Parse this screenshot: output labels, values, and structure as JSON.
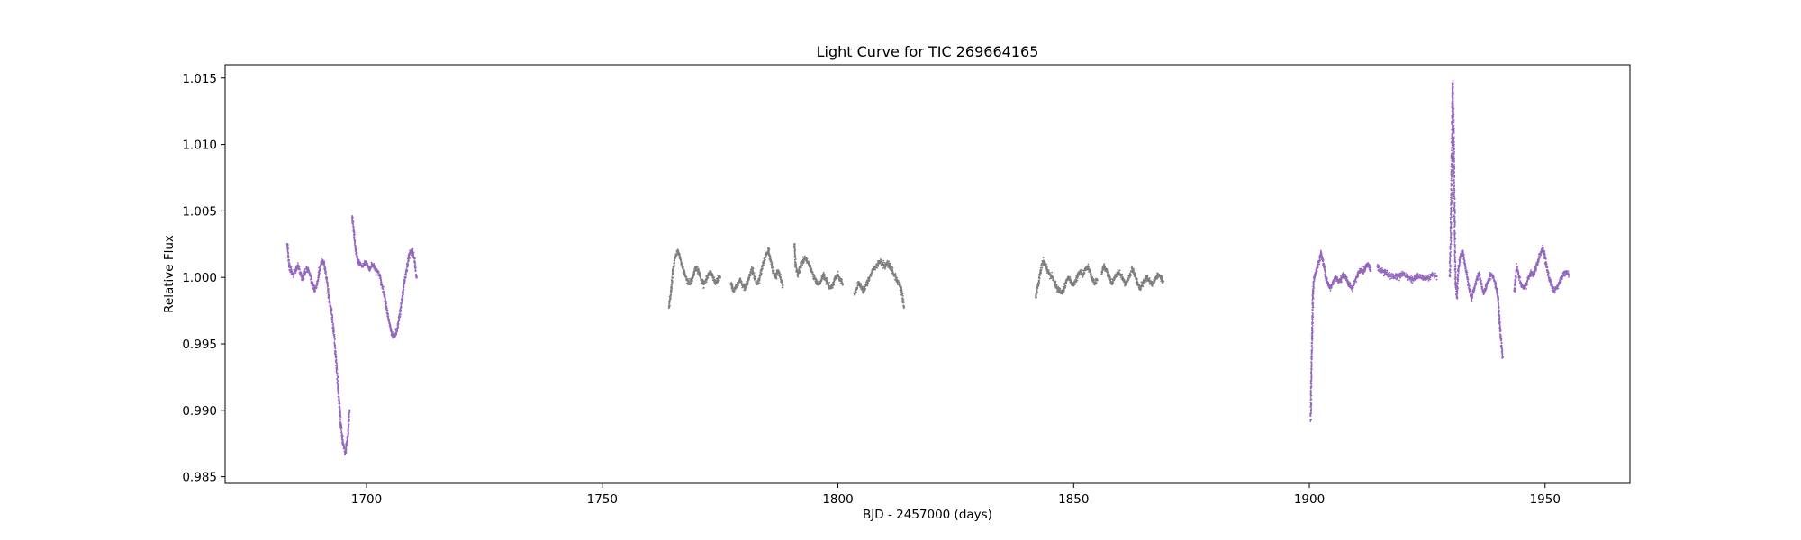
{
  "chart_data": {
    "type": "scatter",
    "title": "Light Curve for TIC 269664165",
    "xlabel": "BJD - 2457000 (days)",
    "ylabel": "Relative Flux",
    "xlim": [
      1670,
      1968
    ],
    "ylim": [
      0.9845,
      1.016
    ],
    "x_ticks": [
      1700,
      1750,
      1800,
      1850,
      1900,
      1950
    ],
    "x_tick_labels": [
      "1700",
      "1750",
      "1800",
      "1850",
      "1900",
      "1950"
    ],
    "y_ticks": [
      0.985,
      0.99,
      0.995,
      1.0,
      1.005,
      1.01,
      1.015
    ],
    "y_tick_labels": [
      "0.985",
      "0.990",
      "0.995",
      "1.000",
      "1.005",
      "1.010",
      "1.015"
    ],
    "grid": false,
    "legend": "none",
    "series": [
      {
        "color": "#9467bd",
        "segments": [
          {
            "x": [
              1683.2,
              1683.6,
              1684.0,
              1684.5,
              1685.0,
              1685.5,
              1686.0,
              1686.5,
              1687.0,
              1687.5,
              1688.0,
              1688.5,
              1689.0,
              1689.5,
              1690.0,
              1690.5,
              1691.0,
              1691.5,
              1692.0,
              1692.5,
              1693.0,
              1693.5,
              1694.0,
              1694.5,
              1695.0,
              1695.5,
              1696.0,
              1696.4
            ],
            "y": [
              1.0025,
              1.0008,
              1.0005,
              1.0002,
              1.0006,
              1.0009,
              1.0003,
              0.9998,
              1.0004,
              1.0007,
              1.0002,
              0.9995,
              0.999,
              0.9995,
              1.0005,
              1.0012,
              1.001,
              1.0,
              0.9985,
              0.9975,
              0.996,
              0.994,
              0.9915,
              0.989,
              0.9875,
              0.9868,
              0.988,
              0.99
            ]
          },
          {
            "x": [
              1697.0,
              1697.3,
              1697.7,
              1698.2,
              1698.7,
              1699.2,
              1699.7,
              1700.2,
              1700.7,
              1701.2,
              1701.7,
              1702.2,
              1702.7,
              1703.2,
              1703.7,
              1704.2,
              1704.7,
              1705.2,
              1705.7,
              1706.2,
              1706.7,
              1707.2,
              1707.7,
              1708.2,
              1708.7,
              1709.2,
              1709.7,
              1710.2,
              1710.6
            ],
            "y": [
              1.0045,
              1.0035,
              1.002,
              1.0012,
              1.001,
              1.0008,
              1.0011,
              1.0009,
              1.0006,
              1.001,
              1.0007,
              1.0005,
              1.0002,
              0.9995,
              0.9988,
              0.9978,
              0.9968,
              0.996,
              0.9955,
              0.9958,
              0.9965,
              0.9975,
              0.9988,
              1.0,
              1.001,
              1.0018,
              1.002,
              1.0012,
              1.0
            ]
          },
          {
            "x": [
              1900.3,
              1900.4,
              1900.6,
              1900.8,
              1901.0,
              1901.5,
              1902.0,
              1902.5,
              1903.0,
              1903.5,
              1904.0,
              1904.5,
              1905.0,
              1905.5,
              1906.0,
              1906.5,
              1907.0,
              1907.5,
              1908.0,
              1908.5,
              1909.0,
              1909.5,
              1910.0,
              1910.5,
              1911.0,
              1911.5,
              1912.0,
              1912.5,
              1913.0
            ],
            "y": [
              0.9893,
              0.992,
              0.996,
              0.999,
              1.0,
              1.0005,
              1.0012,
              1.0018,
              1.001,
              1.0,
              0.9995,
              0.9992,
              0.9996,
              1.0,
              0.9998,
              0.9997,
              1.0,
              1.0002,
              0.9998,
              0.9994,
              0.9992,
              0.9995,
              1.0,
              1.0004,
              1.0006,
              1.0004,
              1.0008,
              1.001,
              1.0005
            ]
          },
          {
            "x": [
              1914.5,
              1915.0,
              1916.0,
              1917.0,
              1918.0,
              1919.0,
              1920.0,
              1921.0,
              1922.0,
              1923.0,
              1924.0,
              1925.0,
              1926.0,
              1927.0
            ],
            "y": [
              1.0008,
              1.0006,
              1.0004,
              1.0002,
              1.0,
              1.0001,
              1.0003,
              1.0,
              0.9998,
              1.0001,
              1.0,
              0.9999,
              1.0002,
              1.0001
            ]
          },
          {
            "x": [
              1929.8,
              1930.0,
              1930.2,
              1930.4,
              1930.6,
              1930.8,
              1931.0,
              1931.3,
              1931.6,
              1932.0,
              1932.5,
              1933.0,
              1933.5,
              1934.0,
              1934.5,
              1935.0,
              1935.5,
              1936.0,
              1936.5,
              1937.0,
              1937.5,
              1938.0,
              1938.5,
              1939.0,
              1939.5,
              1940.0,
              1940.5,
              1941.0
            ],
            "y": [
              1.0001,
              1.003,
              1.009,
              1.0146,
              1.011,
              1.005,
              0.9995,
              0.9985,
              1.0005,
              1.0015,
              1.002,
              1.001,
              1.0,
              0.999,
              0.9985,
              0.9992,
              0.9998,
              1.0003,
              0.9995,
              0.9988,
              0.9993,
              0.9998,
              1.0002,
              1.0,
              0.9995,
              0.9985,
              0.996,
              0.994
            ]
          },
          {
            "x": [
              1943.5,
              1944.0,
              1944.5,
              1945.0,
              1945.5,
              1946.0,
              1946.5,
              1947.0,
              1947.5,
              1948.0,
              1948.5,
              1949.0,
              1949.5,
              1950.0,
              1950.5,
              1951.0,
              1951.5,
              1952.0,
              1952.5,
              1953.0,
              1953.5,
              1954.0,
              1954.5,
              1955.0
            ],
            "y": [
              0.999,
              1.0008,
              1.0,
              0.9994,
              0.9992,
              0.9995,
              1.0,
              1.0004,
              1.0002,
              1.0006,
              1.0012,
              1.0018,
              1.0022,
              1.0015,
              1.0005,
              0.9998,
              0.9993,
              0.999,
              0.9992,
              0.9996,
              1.0,
              1.0003,
              1.0004,
              1.0002
            ]
          }
        ]
      },
      {
        "color": "#7f7f7f",
        "segments": [
          {
            "x": [
              1764.2,
              1764.6,
              1765.0,
              1765.5,
              1766.0,
              1766.5,
              1767.0,
              1767.5,
              1768.0,
              1768.5,
              1769.0,
              1769.5,
              1770.0,
              1770.5,
              1771.0,
              1771.5,
              1772.0,
              1772.5,
              1773.0,
              1773.5,
              1774.0,
              1774.5,
              1775.0
            ],
            "y": [
              0.9978,
              0.999,
              1.0005,
              1.0015,
              1.002,
              1.0015,
              1.0008,
              1.0002,
              0.9998,
              0.9995,
              0.9998,
              1.0004,
              1.0008,
              1.0004,
              0.9998,
              0.9995,
              0.9998,
              1.0002,
              1.0004,
              1.0,
              0.9996,
              0.9998,
              1.0
            ]
          },
          {
            "x": [
              1777.3,
              1777.8,
              1778.3,
              1778.8,
              1779.3,
              1779.8,
              1780.3,
              1780.8,
              1781.3,
              1781.8,
              1782.3,
              1782.8,
              1783.3,
              1783.8,
              1784.3,
              1784.8,
              1785.3,
              1785.8,
              1786.3,
              1786.8,
              1787.3,
              1787.8,
              1788.3
            ],
            "y": [
              0.9995,
              0.999,
              0.9992,
              0.9996,
              0.9998,
              0.9994,
              0.9992,
              0.9996,
              1.0002,
              1.0006,
              1.0,
              0.9995,
              0.9998,
              1.0006,
              1.0012,
              1.0018,
              1.002,
              1.0012,
              1.0004,
              1.0,
              1.0005,
              1.0,
              0.9994
            ]
          },
          {
            "x": [
              1790.8,
              1791.0,
              1791.5,
              1792.0,
              1792.5,
              1793.0,
              1793.5,
              1794.0,
              1794.5,
              1795.0,
              1795.5,
              1796.0,
              1796.5,
              1797.0,
              1797.5,
              1798.0,
              1798.5,
              1799.0,
              1799.5,
              1800.0,
              1800.5,
              1801.0
            ],
            "y": [
              1.0025,
              1.001,
              1.0002,
              1.0008,
              1.0012,
              1.0015,
              1.0012,
              1.0008,
              1.0004,
              1.0,
              0.9996,
              0.9995,
              0.9998,
              1.0002,
              0.9998,
              0.9994,
              0.9992,
              0.9995,
              1.0,
              1.0002,
              0.9998,
              0.9995
            ]
          },
          {
            "x": [
              1803.5,
              1804.0,
              1804.5,
              1805.0,
              1805.5,
              1806.0,
              1806.5,
              1807.0,
              1807.5,
              1808.0,
              1808.5,
              1809.0,
              1809.5,
              1810.0,
              1810.5,
              1811.0,
              1811.5,
              1812.0,
              1812.5,
              1813.0,
              1813.5,
              1814.0
            ],
            "y": [
              0.9988,
              0.9992,
              0.9996,
              0.9992,
              0.999,
              0.9994,
              0.9998,
              1.0002,
              1.0006,
              1.0008,
              1.001,
              1.0012,
              1.001,
              1.0008,
              1.0011,
              1.0009,
              1.0005,
              1.0002,
              0.9998,
              0.9995,
              0.999,
              0.9978
            ]
          },
          {
            "x": [
              1842.0,
              1842.5,
              1843.0,
              1843.5,
              1844.0,
              1844.5,
              1845.0,
              1845.5,
              1846.0,
              1846.5,
              1847.0,
              1847.5,
              1848.0,
              1848.5,
              1849.0,
              1849.5,
              1850.0,
              1850.5,
              1851.0,
              1851.5,
              1852.0,
              1852.5,
              1853.0,
              1853.5,
              1854.0,
              1854.5,
              1855.0
            ],
            "y": [
              0.9985,
              0.9995,
              1.0005,
              1.0012,
              1.001,
              1.0005,
              1.0002,
              1.0,
              0.9996,
              0.9992,
              0.999,
              0.9988,
              0.9992,
              0.9998,
              1.0,
              0.9996,
              0.9994,
              0.9998,
              1.0002,
              1.0004,
              1.0002,
              1.0006,
              1.0008,
              1.0004,
              0.9998,
              0.9996,
              0.9998
            ]
          },
          {
            "x": [
              1856.0,
              1856.5,
              1857.0,
              1857.5,
              1858.0,
              1858.5,
              1859.0,
              1859.5,
              1860.0,
              1860.5,
              1861.0,
              1861.5,
              1862.0,
              1862.5,
              1863.0,
              1863.5,
              1864.0,
              1864.5,
              1865.0,
              1865.5,
              1866.0,
              1866.5,
              1867.0,
              1867.5,
              1868.0,
              1868.5,
              1869.0
            ],
            "y": [
              1.0004,
              1.0008,
              1.0005,
              1.0,
              0.9996,
              0.9998,
              1.0002,
              1.0004,
              1.0002,
              0.9998,
              0.9995,
              0.9998,
              1.0002,
              1.0006,
              1.0002,
              0.9996,
              0.9992,
              0.9994,
              0.9997,
              1.0,
              0.9998,
              0.9995,
              0.9996,
              1.0,
              1.0002,
              1.0,
              0.9997
            ]
          }
        ]
      }
    ]
  }
}
